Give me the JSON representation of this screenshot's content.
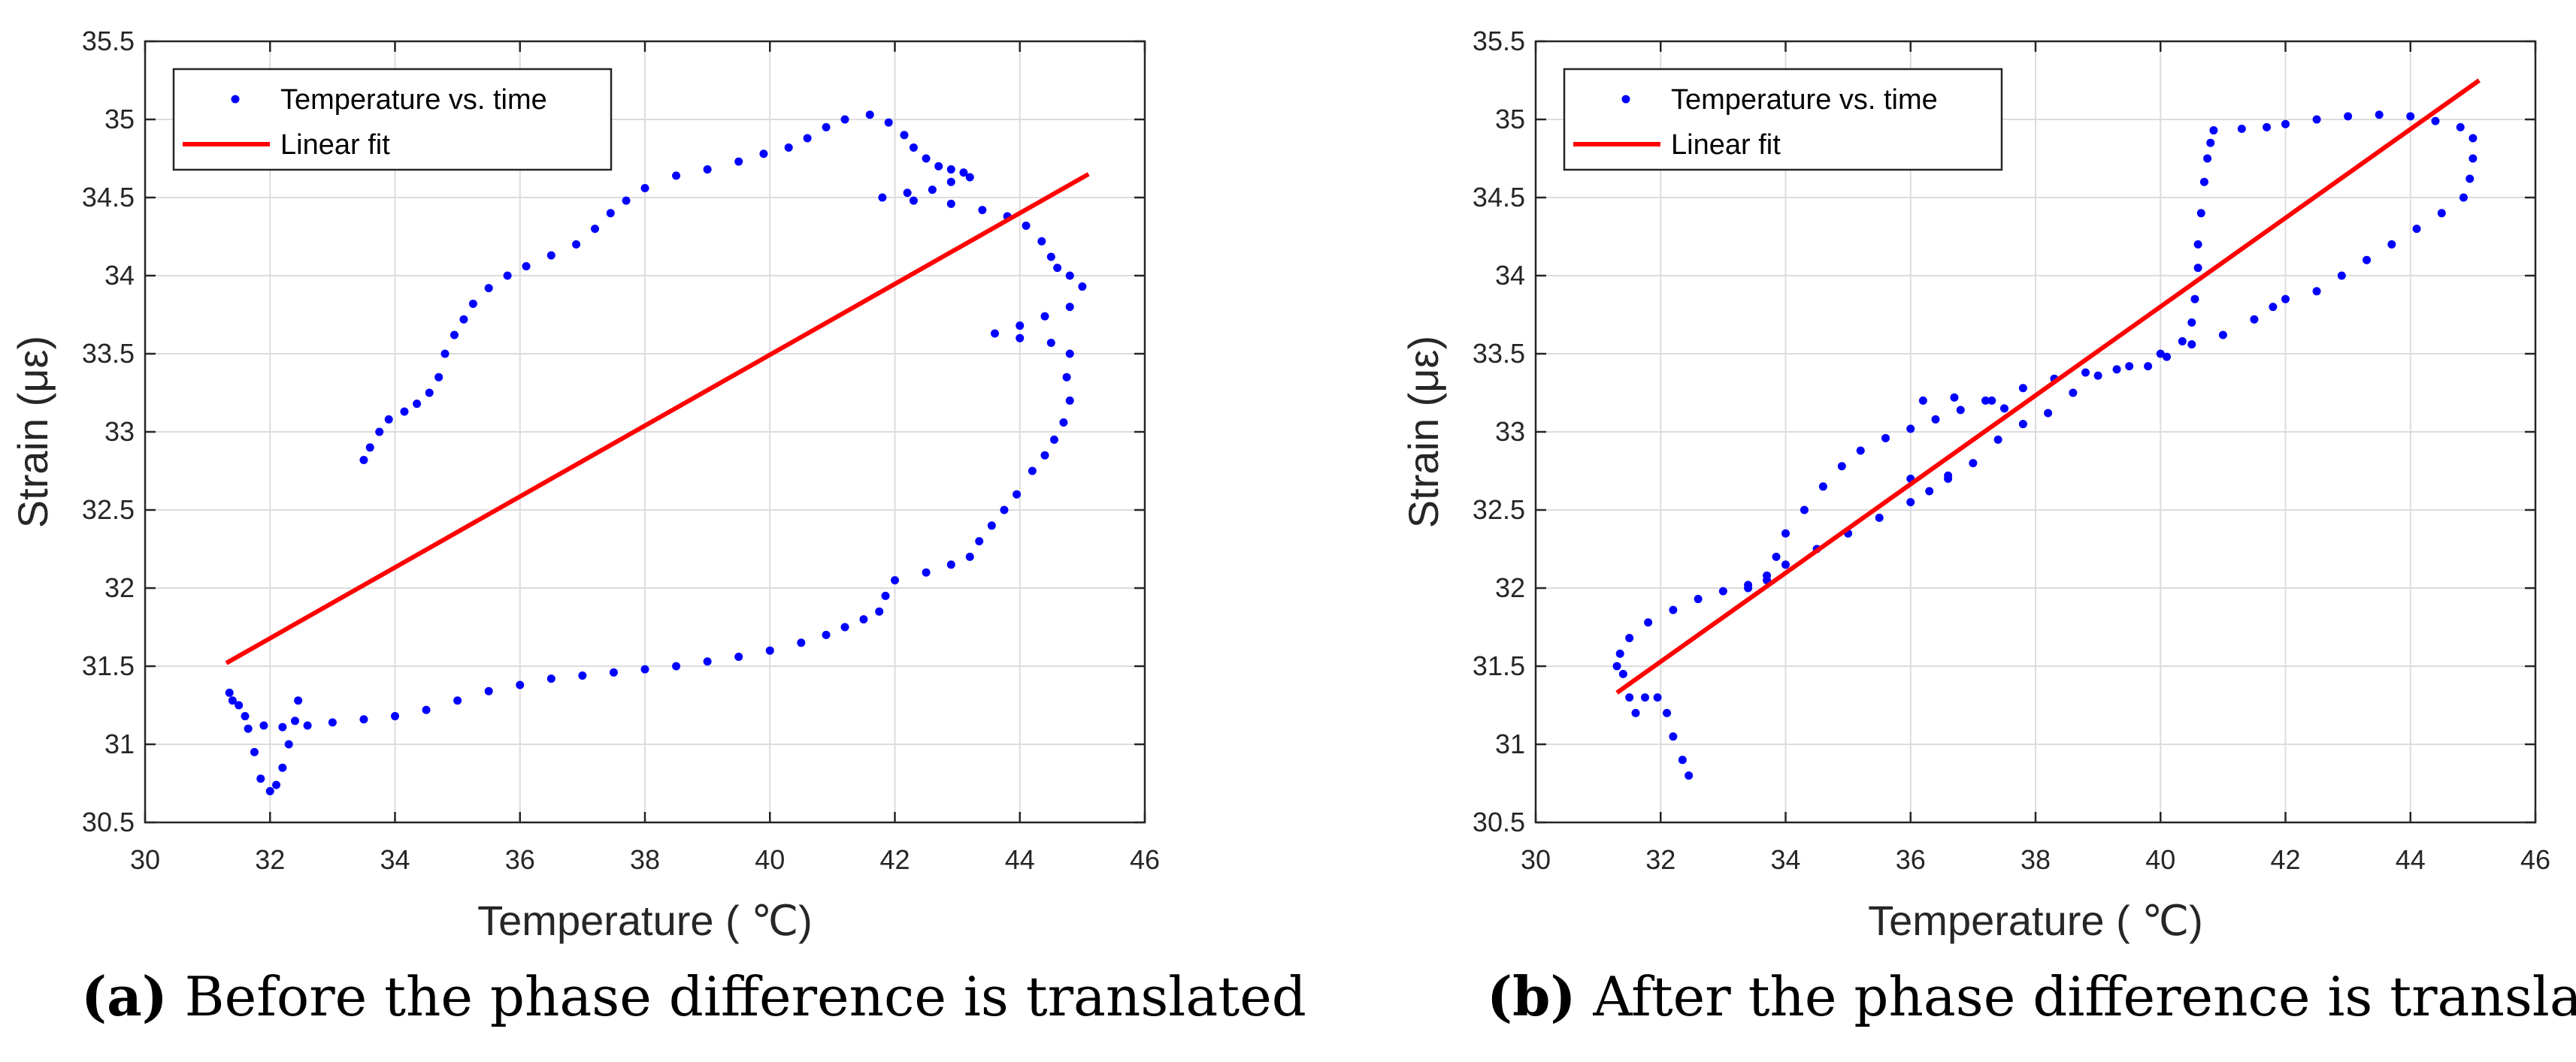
{
  "chart_data": [
    {
      "type": "scatter",
      "panel_id": "a",
      "xlabel": "Temperature ( ℃)",
      "ylabel": "Strain (με)",
      "xlim": [
        30,
        46
      ],
      "ylim": [
        30.5,
        35.5
      ],
      "xticks": [
        30,
        32,
        34,
        36,
        38,
        40,
        42,
        44,
        46
      ],
      "yticks": [
        30.5,
        31,
        31.5,
        32,
        32.5,
        33,
        33.5,
        34,
        34.5,
        35,
        35.5
      ],
      "grid": true,
      "legend_position": "top-left",
      "series": [
        {
          "name": "Temperature vs. time",
          "kind": "points",
          "color": "#0000ff",
          "points": [
            [
              33.5,
              32.82
            ],
            [
              33.6,
              32.9
            ],
            [
              33.75,
              33.0
            ],
            [
              33.9,
              33.08
            ],
            [
              34.15,
              33.13
            ],
            [
              34.35,
              33.18
            ],
            [
              34.55,
              33.25
            ],
            [
              34.7,
              33.35
            ],
            [
              34.8,
              33.5
            ],
            [
              34.95,
              33.62
            ],
            [
              35.1,
              33.72
            ],
            [
              35.25,
              33.82
            ],
            [
              35.5,
              33.92
            ],
            [
              35.8,
              34.0
            ],
            [
              36.1,
              34.06
            ],
            [
              36.5,
              34.13
            ],
            [
              36.9,
              34.2
            ],
            [
              37.2,
              34.3
            ],
            [
              37.45,
              34.4
            ],
            [
              37.7,
              34.48
            ],
            [
              38.0,
              34.56
            ],
            [
              38.5,
              34.64
            ],
            [
              39.0,
              34.68
            ],
            [
              39.5,
              34.73
            ],
            [
              39.9,
              34.78
            ],
            [
              40.3,
              34.82
            ],
            [
              40.6,
              34.88
            ],
            [
              40.9,
              34.95
            ],
            [
              41.2,
              35.0
            ],
            [
              41.6,
              35.03
            ],
            [
              41.9,
              34.98
            ],
            [
              42.15,
              34.9
            ],
            [
              42.3,
              34.82
            ],
            [
              42.5,
              34.75
            ],
            [
              42.7,
              34.7
            ],
            [
              42.9,
              34.68
            ],
            [
              43.1,
              34.66
            ],
            [
              43.2,
              34.63
            ],
            [
              42.9,
              34.6
            ],
            [
              42.6,
              34.55
            ],
            [
              42.2,
              34.53
            ],
            [
              41.8,
              34.5
            ],
            [
              42.3,
              34.48
            ],
            [
              42.9,
              34.46
            ],
            [
              43.4,
              34.42
            ],
            [
              43.8,
              34.38
            ],
            [
              44.1,
              34.32
            ],
            [
              44.35,
              34.22
            ],
            [
              44.5,
              34.12
            ],
            [
              44.6,
              34.05
            ],
            [
              44.8,
              34.0
            ],
            [
              45.0,
              33.93
            ],
            [
              44.8,
              33.8
            ],
            [
              44.4,
              33.74
            ],
            [
              44.0,
              33.68
            ],
            [
              43.6,
              33.63
            ],
            [
              44.0,
              33.6
            ],
            [
              44.5,
              33.57
            ],
            [
              44.8,
              33.5
            ],
            [
              44.75,
              33.35
            ],
            [
              44.8,
              33.2
            ],
            [
              44.7,
              33.06
            ],
            [
              44.55,
              32.95
            ],
            [
              44.4,
              32.85
            ],
            [
              44.2,
              32.75
            ],
            [
              43.95,
              32.6
            ],
            [
              43.75,
              32.5
            ],
            [
              43.55,
              32.4
            ],
            [
              43.35,
              32.3
            ],
            [
              43.2,
              32.2
            ],
            [
              42.9,
              32.15
            ],
            [
              42.5,
              32.1
            ],
            [
              42.0,
              32.05
            ],
            [
              41.85,
              31.95
            ],
            [
              41.75,
              31.85
            ],
            [
              41.5,
              31.8
            ],
            [
              41.2,
              31.75
            ],
            [
              40.9,
              31.7
            ],
            [
              40.5,
              31.65
            ],
            [
              40.0,
              31.6
            ],
            [
              39.5,
              31.56
            ],
            [
              39.0,
              31.53
            ],
            [
              38.5,
              31.5
            ],
            [
              38.0,
              31.48
            ],
            [
              37.5,
              31.46
            ],
            [
              37.0,
              31.44
            ],
            [
              36.5,
              31.42
            ],
            [
              36.0,
              31.38
            ],
            [
              35.5,
              31.34
            ],
            [
              35.0,
              31.28
            ],
            [
              34.5,
              31.22
            ],
            [
              34.0,
              31.18
            ],
            [
              33.5,
              31.16
            ],
            [
              33.0,
              31.14
            ],
            [
              32.6,
              31.12
            ],
            [
              32.2,
              31.11
            ],
            [
              31.9,
              31.12
            ],
            [
              31.6,
              31.18
            ],
            [
              31.4,
              31.28
            ],
            [
              31.35,
              31.33
            ],
            [
              31.5,
              31.25
            ],
            [
              31.65,
              31.1
            ],
            [
              31.75,
              30.95
            ],
            [
              31.85,
              30.78
            ],
            [
              32.0,
              30.7
            ],
            [
              32.1,
              30.74
            ],
            [
              32.2,
              30.85
            ],
            [
              32.3,
              31.0
            ],
            [
              32.4,
              31.15
            ],
            [
              32.45,
              31.28
            ]
          ]
        },
        {
          "name": "Linear fit",
          "kind": "line",
          "color": "#ff0000",
          "points": [
            [
              31.3,
              31.52
            ],
            [
              45.1,
              34.65
            ]
          ]
        }
      ],
      "caption_letter": "(a)",
      "caption_text": " Before the phase difference is translated"
    },
    {
      "type": "scatter",
      "panel_id": "b",
      "xlabel": "Temperature ( ℃)",
      "ylabel": "Strain (με)",
      "xlim": [
        30,
        46
      ],
      "ylim": [
        30.5,
        35.5
      ],
      "xticks": [
        30,
        32,
        34,
        36,
        38,
        40,
        42,
        44,
        46
      ],
      "yticks": [
        30.5,
        31,
        31.5,
        32,
        32.5,
        33,
        33.5,
        34,
        34.5,
        35,
        35.5
      ],
      "grid": true,
      "legend_position": "top-left",
      "series": [
        {
          "name": "Temperature vs. time",
          "kind": "points",
          "color": "#0000ff",
          "points": [
            [
              32.45,
              30.8
            ],
            [
              32.35,
              30.9
            ],
            [
              32.2,
              31.05
            ],
            [
              32.1,
              31.2
            ],
            [
              31.95,
              31.3
            ],
            [
              31.75,
              31.3
            ],
            [
              31.6,
              31.2
            ],
            [
              31.5,
              31.3
            ],
            [
              31.4,
              31.45
            ],
            [
              31.3,
              31.5
            ],
            [
              31.35,
              31.58
            ],
            [
              31.5,
              31.68
            ],
            [
              31.8,
              31.78
            ],
            [
              32.2,
              31.86
            ],
            [
              32.6,
              31.93
            ],
            [
              33.0,
              31.98
            ],
            [
              33.4,
              32.02
            ],
            [
              33.7,
              32.08
            ],
            [
              33.85,
              32.2
            ],
            [
              34.0,
              32.35
            ],
            [
              34.3,
              32.5
            ],
            [
              34.6,
              32.65
            ],
            [
              34.9,
              32.78
            ],
            [
              35.2,
              32.88
            ],
            [
              35.6,
              32.96
            ],
            [
              36.0,
              33.02
            ],
            [
              36.4,
              33.08
            ],
            [
              36.8,
              33.14
            ],
            [
              37.3,
              33.2
            ],
            [
              37.8,
              33.28
            ],
            [
              38.3,
              33.34
            ],
            [
              38.8,
              33.38
            ],
            [
              39.3,
              33.4
            ],
            [
              39.8,
              33.42
            ],
            [
              40.1,
              33.48
            ],
            [
              40.35,
              33.58
            ],
            [
              40.5,
              33.7
            ],
            [
              40.55,
              33.85
            ],
            [
              40.6,
              34.05
            ],
            [
              40.6,
              34.2
            ],
            [
              40.65,
              34.4
            ],
            [
              40.7,
              34.6
            ],
            [
              40.75,
              34.75
            ],
            [
              40.8,
              34.85
            ],
            [
              40.85,
              34.93
            ],
            [
              41.3,
              34.94
            ],
            [
              41.7,
              34.95
            ],
            [
              42.0,
              34.97
            ],
            [
              42.5,
              35.0
            ],
            [
              43.0,
              35.02
            ],
            [
              43.5,
              35.03
            ],
            [
              44.0,
              35.02
            ],
            [
              44.4,
              34.99
            ],
            [
              44.8,
              34.95
            ],
            [
              45.0,
              34.88
            ],
            [
              45.0,
              34.75
            ],
            [
              44.95,
              34.62
            ],
            [
              44.85,
              34.5
            ],
            [
              44.5,
              34.4
            ],
            [
              44.1,
              34.3
            ],
            [
              43.7,
              34.2
            ],
            [
              43.3,
              34.1
            ],
            [
              42.9,
              34.0
            ],
            [
              42.5,
              33.9
            ],
            [
              42.0,
              33.85
            ],
            [
              41.8,
              33.8
            ],
            [
              41.5,
              33.72
            ],
            [
              41.0,
              33.62
            ],
            [
              40.5,
              33.56
            ],
            [
              40.0,
              33.5
            ],
            [
              39.5,
              33.42
            ],
            [
              39.0,
              33.36
            ],
            [
              38.6,
              33.25
            ],
            [
              38.2,
              33.12
            ],
            [
              37.8,
              33.05
            ],
            [
              37.4,
              32.95
            ],
            [
              37.0,
              32.8
            ],
            [
              36.6,
              32.7
            ],
            [
              36.3,
              32.62
            ],
            [
              36.0,
              32.55
            ],
            [
              35.5,
              32.45
            ],
            [
              35.0,
              32.35
            ],
            [
              34.5,
              32.25
            ],
            [
              34.0,
              32.15
            ],
            [
              33.7,
              32.05
            ],
            [
              33.4,
              32.0
            ],
            [
              36.2,
              33.2
            ],
            [
              36.7,
              33.22
            ],
            [
              37.2,
              33.2
            ],
            [
              37.5,
              33.15
            ],
            [
              37.8,
              33.05
            ],
            [
              36.0,
              32.7
            ],
            [
              36.6,
              32.72
            ]
          ]
        },
        {
          "name": "Linear fit",
          "kind": "line",
          "color": "#ff0000",
          "points": [
            [
              31.3,
              31.33
            ],
            [
              45.1,
              35.25
            ]
          ]
        }
      ],
      "caption_letter": "(b)",
      "caption_text": " After the phase difference is translated"
    }
  ]
}
